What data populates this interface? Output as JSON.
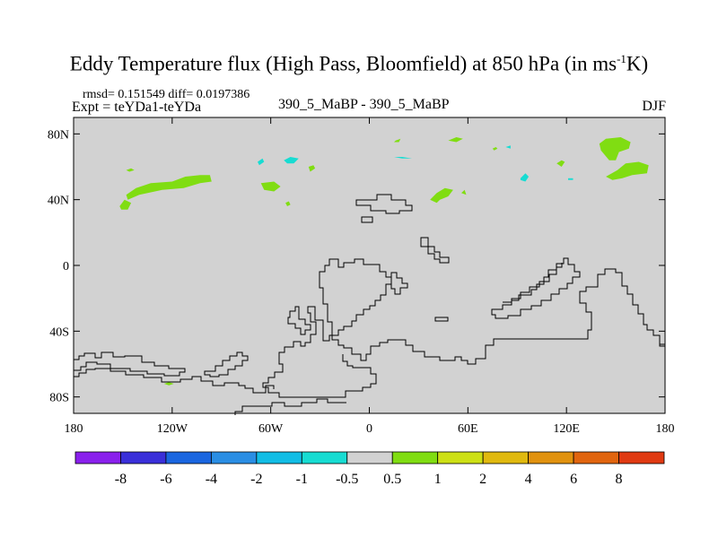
{
  "title": {
    "main": "Eddy Temperature flux (High Pass, Bloomfield) at 850 hPa (in ms",
    "sup": "-1",
    "tail": "K)"
  },
  "stats": "rmsd= 0.151549  diff= 0.0197386",
  "expt": "Expt = teYDa1-teYDa",
  "run": "390_5_MaBP - 390_5_MaBP",
  "season": "DJF",
  "chart_data": {
    "type": "heatmap",
    "title": "Eddy Temperature flux (High Pass, Bloomfield) at 850 hPa (in ms-1K)",
    "xlabel": "",
    "ylabel": "",
    "xlim": [
      -180,
      180
    ],
    "ylim": [
      -90,
      90
    ],
    "x_ticks": [
      {
        "value": -180,
        "label": "180"
      },
      {
        "value": -120,
        "label": "120W"
      },
      {
        "value": -60,
        "label": "60W"
      },
      {
        "value": 0,
        "label": "0"
      },
      {
        "value": 60,
        "label": "60E"
      },
      {
        "value": 120,
        "label": "120E"
      },
      {
        "value": 180,
        "label": "180"
      }
    ],
    "y_ticks": [
      {
        "value": 80,
        "label": "80N"
      },
      {
        "value": 40,
        "label": "40N"
      },
      {
        "value": 0,
        "label": "0"
      },
      {
        "value": -40,
        "label": "40S"
      },
      {
        "value": -80,
        "label": "80S"
      }
    ],
    "background_level": "-0.5 to 0.5",
    "colorbar": {
      "colors": [
        "#8a20ec",
        "#3a2fd9",
        "#1a66e0",
        "#2a8ee4",
        "#12bde5",
        "#17dcd2",
        "#d2d2d2",
        "#80dd12",
        "#cde015",
        "#e0b90f",
        "#e1920f",
        "#e1650f",
        "#e03a12"
      ],
      "labels": [
        "-8",
        "-6",
        "-4",
        "-2",
        "-1",
        "-0.5",
        "0.5",
        "1",
        "2",
        "4",
        "6",
        "8"
      ]
    },
    "regions": [
      {
        "level": "1 to 2",
        "color": "#80dd12",
        "points": [
          [
            -147,
            40
          ],
          [
            -140,
            43
          ],
          [
            -126,
            46
          ],
          [
            -113,
            47
          ],
          [
            -103,
            50
          ],
          [
            -96,
            51
          ],
          [
            -97,
            55
          ],
          [
            -103,
            55
          ],
          [
            -112,
            54
          ],
          [
            -120,
            51
          ],
          [
            -133,
            50
          ],
          [
            -142,
            47
          ],
          [
            -148,
            43
          ]
        ]
      },
      {
        "level": "1 to 2",
        "color": "#80dd12",
        "points": [
          [
            -152,
            36
          ],
          [
            -149,
            40
          ],
          [
            -145,
            38
          ],
          [
            -147,
            34
          ],
          [
            -151,
            34
          ]
        ]
      },
      {
        "level": "1 to 2",
        "color": "#80dd12",
        "points": [
          [
            -148,
            58
          ],
          [
            -145,
            59
          ],
          [
            -143,
            58
          ],
          [
            -146,
            57
          ]
        ]
      },
      {
        "level": "1 to 2",
        "color": "#80dd12",
        "points": [
          [
            -66,
            50
          ],
          [
            -58,
            51
          ],
          [
            -54,
            48
          ],
          [
            -58,
            45
          ],
          [
            -64,
            46
          ]
        ]
      },
      {
        "level": "1 to 2",
        "color": "#80dd12",
        "points": [
          [
            -51,
            38
          ],
          [
            -49,
            39
          ],
          [
            -48,
            37
          ],
          [
            -50,
            36
          ]
        ]
      },
      {
        "level": "1 to 2",
        "color": "#80dd12",
        "points": [
          [
            -36,
            57
          ],
          [
            -33,
            59
          ],
          [
            -34,
            61
          ],
          [
            -37,
            60
          ]
        ]
      },
      {
        "level": "1 to 2",
        "color": "#80dd12",
        "points": [
          [
            16,
            76
          ],
          [
            19,
            77
          ],
          [
            18,
            75
          ],
          [
            15,
            75
          ]
        ]
      },
      {
        "level": "1 to 2",
        "color": "#80dd12",
        "points": [
          [
            48,
            76
          ],
          [
            53,
            78
          ],
          [
            57,
            77
          ],
          [
            53,
            75
          ]
        ]
      },
      {
        "level": "1 to 2",
        "color": "#80dd12",
        "points": [
          [
            37,
            40
          ],
          [
            41,
            44
          ],
          [
            46,
            47
          ],
          [
            51,
            46
          ],
          [
            48,
            42
          ],
          [
            43,
            40
          ],
          [
            41,
            38
          ]
        ]
      },
      {
        "level": "1 to 2",
        "color": "#80dd12",
        "points": [
          [
            56,
            44
          ],
          [
            58,
            46
          ],
          [
            59,
            43
          ]
        ]
      },
      {
        "level": "1 to 2",
        "color": "#80dd12",
        "points": [
          [
            75,
            71
          ],
          [
            77,
            72
          ],
          [
            78,
            71
          ],
          [
            76,
            70
          ]
        ]
      },
      {
        "level": "1 to 2",
        "color": "#80dd12",
        "points": [
          [
            114,
            62
          ],
          [
            117,
            64
          ],
          [
            119,
            63
          ],
          [
            117,
            60
          ]
        ]
      },
      {
        "level": "1 to 2",
        "color": "#80dd12",
        "points": [
          [
            140,
            74
          ],
          [
            144,
            77
          ],
          [
            153,
            78
          ],
          [
            159,
            75
          ],
          [
            158,
            71
          ],
          [
            152,
            69
          ],
          [
            150,
            64
          ],
          [
            146,
            64
          ],
          [
            141,
            70
          ]
        ]
      },
      {
        "level": "1 to 2",
        "color": "#80dd12",
        "points": [
          [
            144,
            54
          ],
          [
            151,
            58
          ],
          [
            156,
            62
          ],
          [
            164,
            63
          ],
          [
            170,
            61
          ],
          [
            169,
            56
          ],
          [
            160,
            55
          ],
          [
            154,
            53
          ],
          [
            148,
            52
          ]
        ]
      },
      {
        "level": "1 to 2",
        "color": "#80dd12",
        "points": [
          [
            -125,
            -72
          ],
          [
            -122,
            -71
          ],
          [
            -119,
            -72
          ],
          [
            -122,
            -73
          ]
        ]
      },
      {
        "level": "-1 to -0.5",
        "color": "#17dcd2",
        "points": [
          [
            -68,
            63
          ],
          [
            -65,
            65
          ],
          [
            -64,
            63
          ],
          [
            -67,
            61
          ]
        ]
      },
      {
        "level": "-1 to -0.5",
        "color": "#17dcd2",
        "points": [
          [
            -52,
            64
          ],
          [
            -48,
            66
          ],
          [
            -43,
            65
          ],
          [
            -46,
            62
          ],
          [
            -50,
            62
          ]
        ]
      },
      {
        "level": "-1 to -0.5",
        "color": "#17dcd2",
        "points": [
          [
            15,
            66
          ],
          [
            20,
            66
          ],
          [
            26,
            65
          ],
          [
            20,
            65
          ]
        ]
      },
      {
        "level": "-1 to -0.5",
        "color": "#17dcd2",
        "points": [
          [
            83,
            72
          ],
          [
            86,
            73
          ],
          [
            86,
            71
          ]
        ]
      },
      {
        "level": "-1 to -0.5",
        "color": "#17dcd2",
        "points": [
          [
            92,
            53
          ],
          [
            95,
            56
          ],
          [
            97,
            54
          ],
          [
            95,
            51
          ],
          [
            92,
            52
          ]
        ]
      },
      {
        "level": "-1 to -0.5",
        "color": "#17dcd2",
        "points": [
          [
            121,
            53
          ],
          [
            124,
            53
          ],
          [
            124,
            52
          ],
          [
            121,
            52
          ]
        ]
      }
    ]
  }
}
